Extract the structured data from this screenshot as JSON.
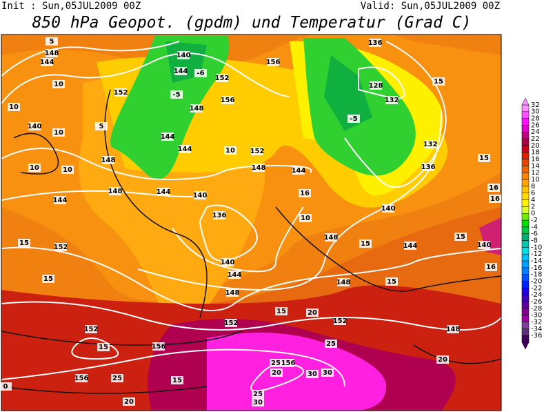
{
  "header": {
    "init": "Init : Sun,05JUL2009 00Z",
    "valid": "Valid: Sun,05JUL2009 00Z",
    "title": "850 hPa Geopot. (gpdm) und Temperatur (Grad C)"
  },
  "colorbar": {
    "labels": [
      "32",
      "30",
      "28",
      "26",
      "24",
      "22",
      "20",
      "18",
      "16",
      "14",
      "12",
      "10",
      "8",
      "6",
      "4",
      "2",
      "0",
      "-2",
      "-4",
      "-6",
      "-8",
      "-10",
      "-12",
      "-14",
      "-16",
      "-18",
      "-20",
      "-22",
      "-24",
      "-26",
      "-28",
      "-30",
      "-32",
      "-34",
      "-36"
    ],
    "colors": [
      "#ff90ff",
      "#ff50ff",
      "#ff10ff",
      "#e000c8",
      "#c0007e",
      "#a80040",
      "#c8001e",
      "#dc2000",
      "#e84400",
      "#f06400",
      "#f88400",
      "#ffa400",
      "#ffc400",
      "#ffdc00",
      "#fff200",
      "#d8ff30",
      "#70f000",
      "#00e000",
      "#00c840",
      "#00b070",
      "#00c8a8",
      "#00e0e0",
      "#00c0ff",
      "#00a0ff",
      "#0080ff",
      "#0050ff",
      "#0020ff",
      "#2000e0",
      "#4000c0",
      "#6000a0",
      "#800090",
      "#a000a8",
      "#8040a0",
      "#603080",
      "#400060"
    ]
  },
  "contour_labels": [
    "148",
    "144",
    "10",
    "152",
    "10",
    "140",
    "10",
    "10",
    "10",
    "148",
    "148",
    "144",
    "144",
    "140",
    "136",
    "140",
    "144",
    "148",
    "152",
    "152",
    "15",
    "15",
    "152",
    "15",
    "156",
    "156",
    "25",
    "15",
    "20",
    "0",
    "140",
    "144",
    "152",
    "156",
    "148",
    "144",
    "144",
    "152",
    "148",
    "144",
    "16",
    "10",
    "148",
    "15",
    "144",
    "15",
    "148",
    "15",
    "20",
    "152",
    "148",
    "20",
    "25",
    "156",
    "25",
    "20",
    "30",
    "30",
    "25",
    "30",
    "156",
    "136",
    "128",
    "132",
    "132",
    "136",
    "140",
    "15",
    "15",
    "16",
    "16",
    "15",
    "140",
    "16",
    "-5",
    "-6",
    "-5",
    "5",
    "5",
    "10"
  ]
}
